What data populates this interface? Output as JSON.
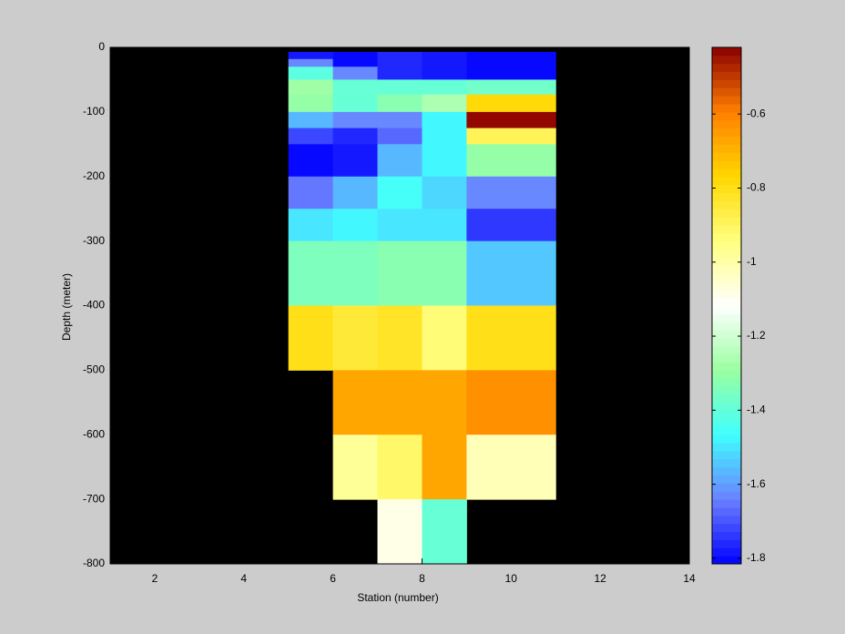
{
  "chart_data": {
    "type": "heatmap",
    "xlabel": "Station (number)",
    "ylabel": "Depth (meter)",
    "xlim": [
      1,
      14
    ],
    "xticks": [
      2,
      4,
      6,
      8,
      10,
      12,
      14
    ],
    "ylim": [
      -800,
      0
    ],
    "yticks": [
      0,
      -100,
      -200,
      -300,
      -400,
      -500,
      -600,
      -700,
      -800
    ],
    "background": "#000000",
    "x_edges": [
      5,
      6,
      7,
      8,
      9,
      11
    ],
    "y_edges": [
      -7,
      -18,
      -30,
      -50,
      -73,
      -100,
      -125,
      -150,
      -200,
      -250,
      -300,
      -400,
      -500,
      -600,
      -700,
      -800
    ],
    "values": [
      [
        -1.78,
        -1.8,
        -1.77,
        -1.78,
        -1.815
      ],
      [
        -1.64,
        -1.8,
        -1.77,
        -1.78,
        -1.815
      ],
      [
        -1.42,
        -1.64,
        -1.75,
        -1.78,
        -1.8
      ],
      [
        -1.28,
        -1.38,
        -1.38,
        -1.38,
        -1.36
      ],
      [
        -1.3,
        -1.4,
        -1.33,
        -1.25,
        -0.78
      ],
      [
        -1.57,
        -1.64,
        -1.64,
        -1.47,
        -0.43
      ],
      [
        -1.72,
        -1.76,
        -1.68,
        -1.47,
        -0.88
      ],
      [
        -1.8,
        -1.78,
        -1.57,
        -1.47,
        -1.3
      ],
      [
        -1.65,
        -1.57,
        -1.46,
        -1.53,
        -1.63
      ],
      [
        -1.49,
        -1.47,
        -1.5,
        -1.5,
        -1.74
      ],
      [
        -1.34,
        -1.34,
        -1.32,
        -1.32,
        -1.55
      ],
      [
        -0.8,
        -0.85,
        -0.82,
        -0.93,
        -0.8
      ],
      [
        null,
        -0.68,
        -0.68,
        -0.68,
        -0.62
      ],
      [
        null,
        -0.97,
        -0.9,
        -0.68,
        -1.02
      ],
      [
        null,
        null,
        -1.08,
        -1.38,
        null
      ]
    ],
    "colormap": [
      "#0000ff",
      "#6b80ff",
      "#40ffff",
      "#9affa0",
      "#ffffff",
      "#ffff80",
      "#ffd700",
      "#ff8000",
      "#8b0000"
    ],
    "colormap_levels": 64,
    "clim": [
      -1.815,
      -0.42
    ],
    "cticks": [
      -0.6,
      -0.8,
      -1,
      -1.2,
      -1.4,
      -1.6,
      -1.8
    ]
  }
}
